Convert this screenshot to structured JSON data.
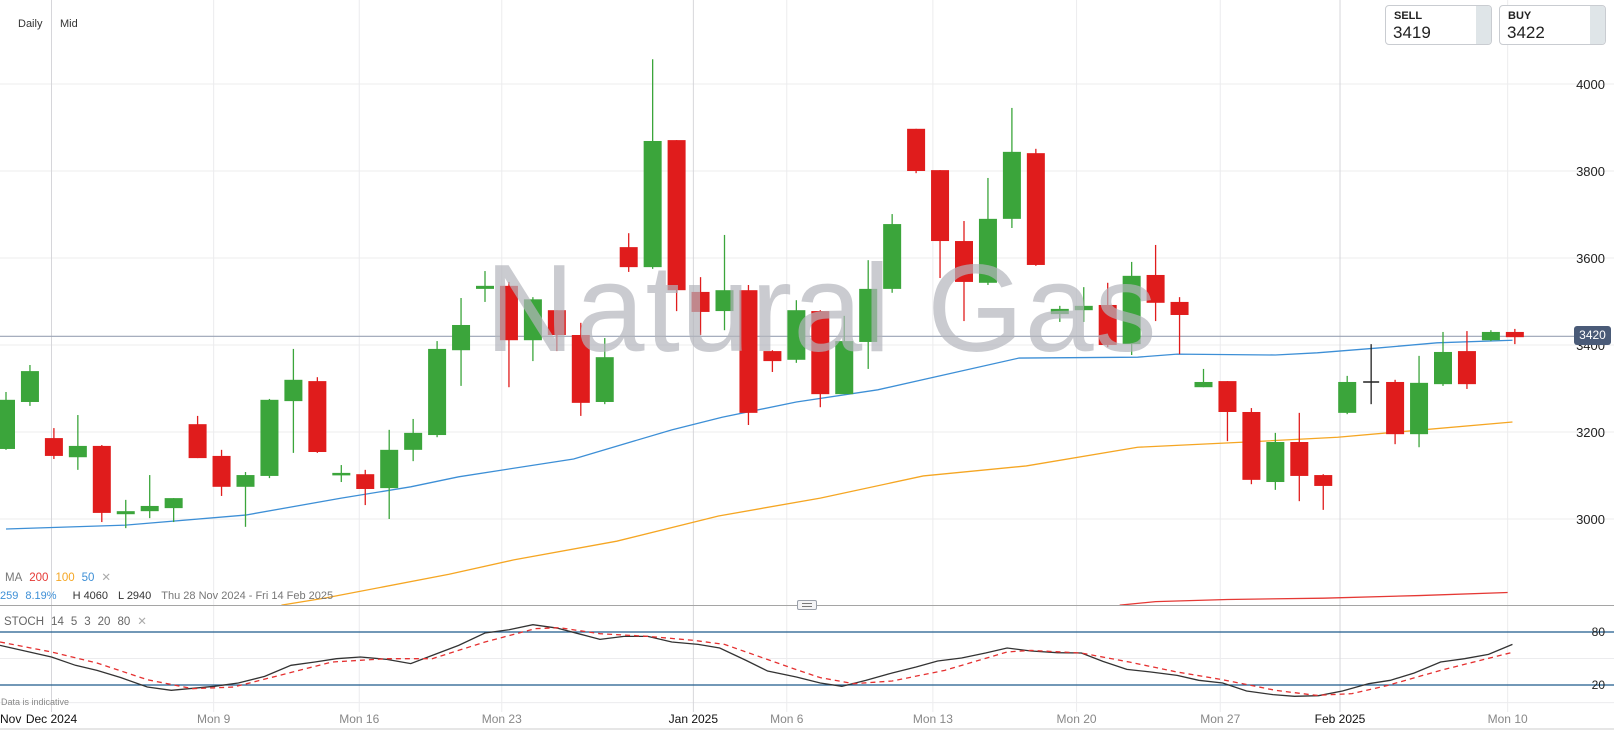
{
  "header": {
    "interval": "Daily",
    "price_type": "Mid"
  },
  "quotes": {
    "sell": {
      "label": "SELL",
      "value": "3419"
    },
    "buy": {
      "label": "BUY",
      "value": "3422"
    }
  },
  "watermark": "Natural Gas",
  "current_price": {
    "value": 3420,
    "label": "3420",
    "color": "#4a5b78"
  },
  "ma_legend": {
    "label": "MA",
    "periods": [
      "200",
      "100",
      "50"
    ],
    "colors": [
      "#e53935",
      "#f5a623",
      "#3d8fd6"
    ],
    "close_icon": "close-icon"
  },
  "info_line": {
    "change": "259",
    "change_pct": "8.19%",
    "high": "H 4060",
    "low": "L 2940",
    "range": "Thu 28 Nov 2024 - Fri 14 Feb 2025"
  },
  "stoch_legend": {
    "label": "STOCH",
    "params": [
      "14",
      "5",
      "3",
      "20",
      "80"
    ],
    "close_icon": "close-icon"
  },
  "disclaimer": "Data is indicative",
  "colors": {
    "up": "#3ba53b",
    "down": "#e01c1c",
    "doji": "#222222",
    "stoch_k": "#333333",
    "stoch_d": "#e53030",
    "stoch_bands": "#1f5b8c"
  },
  "chart_data": [
    {
      "type": "candlestick",
      "title": "",
      "ylim": [
        2800,
        4100
      ],
      "y_ticks": [
        "4000",
        "3800",
        "3600",
        "3400",
        "3200",
        "3000"
      ],
      "x_ticks": [
        {
          "label": "Nov",
          "index": -1.6,
          "month": true
        },
        {
          "label": "Dec 2024",
          "index": 1.9,
          "month": true
        },
        {
          "label": "Mon 9",
          "index": 8.67
        },
        {
          "label": "Mon 16",
          "index": 14.75
        },
        {
          "label": "Mon 23",
          "index": 20.7
        },
        {
          "label": "Jan 2025",
          "index": 28.7,
          "month": true
        },
        {
          "label": "Mon 6",
          "index": 32.6
        },
        {
          "label": "Mon 13",
          "index": 38.7
        },
        {
          "label": "Mon 20",
          "index": 44.7
        },
        {
          "label": "Mon 27",
          "index": 50.7
        },
        {
          "label": "Feb 2025",
          "index": 55.7,
          "month": true
        },
        {
          "label": "Mon 10",
          "index": 62.7
        }
      ],
      "ohlc_fields": [
        "open",
        "high",
        "low",
        "close"
      ],
      "candles": [
        [
          3161,
          3292,
          3159,
          3274
        ],
        [
          3269,
          3354,
          3260,
          3340
        ],
        [
          3186,
          3209,
          3138,
          3145
        ],
        [
          3142,
          3239,
          3113,
          3168
        ],
        [
          3168,
          3170,
          2993,
          3014
        ],
        [
          3011,
          3044,
          2979,
          3018
        ],
        [
          3018,
          3101,
          3002,
          3030
        ],
        [
          3025,
          3048,
          2993,
          3048
        ],
        [
          3218,
          3237,
          3140,
          3140
        ],
        [
          3145,
          3159,
          3053,
          3074
        ],
        [
          3074,
          3108,
          2982,
          3101
        ],
        [
          3099,
          3276,
          3094,
          3274
        ],
        [
          3271,
          3391,
          3152,
          3320
        ],
        [
          3317,
          3326,
          3152,
          3154
        ],
        [
          3101,
          3124,
          3085,
          3106
        ],
        [
          3103,
          3113,
          3032,
          3069
        ],
        [
          3071,
          3205,
          3000,
          3159
        ],
        [
          3159,
          3230,
          3133,
          3198
        ],
        [
          3193,
          3409,
          3188,
          3391
        ],
        [
          3388,
          3508,
          3306,
          3446
        ],
        [
          3529,
          3570,
          3499,
          3536
        ],
        [
          3536,
          3545,
          3303,
          3411
        ],
        [
          3411,
          3510,
          3363,
          3505
        ],
        [
          3480,
          3480,
          3386,
          3423
        ],
        [
          3423,
          3451,
          3237,
          3267
        ],
        [
          3269,
          3416,
          3264,
          3372
        ],
        [
          3625,
          3657,
          3568,
          3579
        ],
        [
          3579,
          4057,
          3575,
          3869
        ],
        [
          3871,
          3871,
          3478,
          3526
        ],
        [
          3522,
          3556,
          3423,
          3476
        ],
        [
          3478,
          3653,
          3434,
          3526
        ],
        [
          3526,
          3538,
          3216,
          3244
        ],
        [
          3386,
          3388,
          3338,
          3363
        ],
        [
          3366,
          3503,
          3359,
          3480
        ],
        [
          3478,
          3480,
          3257,
          3287
        ],
        [
          3287,
          3467,
          3287,
          3409
        ],
        [
          3407,
          3595,
          3345,
          3529
        ],
        [
          3529,
          3701,
          3520,
          3678
        ],
        [
          3897,
          3897,
          3795,
          3800
        ],
        [
          3802,
          3802,
          3554,
          3639
        ],
        [
          3639,
          3685,
          3455,
          3545
        ],
        [
          3543,
          3784,
          3538,
          3690
        ],
        [
          3690,
          3945,
          3669,
          3844
        ],
        [
          3841,
          3851,
          3582,
          3584
        ],
        [
          3471,
          3490,
          3453,
          3483
        ],
        [
          3480,
          3533,
          3453,
          3490
        ],
        [
          3492,
          3543,
          3395,
          3400
        ],
        [
          3402,
          3591,
          3377,
          3559
        ],
        [
          3561,
          3630,
          3455,
          3497
        ],
        [
          3499,
          3510,
          3379,
          3469
        ],
        [
          3303,
          3345,
          3303,
          3315
        ],
        [
          3317,
          3317,
          3179,
          3246
        ],
        [
          3246,
          3255,
          3080,
          3090
        ],
        [
          3085,
          3198,
          3067,
          3177
        ],
        [
          3177,
          3244,
          3041,
          3099
        ],
        [
          3101,
          3103,
          3021,
          3076
        ],
        [
          3244,
          3329,
          3241,
          3315
        ],
        [
          3315,
          3402,
          3264,
          3315
        ],
        [
          3315,
          3320,
          3172,
          3195
        ],
        [
          3195,
          3375,
          3165,
          3313
        ],
        [
          3310,
          3430,
          3306,
          3384
        ],
        [
          3386,
          3432,
          3299,
          3310
        ],
        [
          3411,
          3434,
          3409,
          3430
        ],
        [
          3430,
          3437,
          3402,
          3418
        ]
      ],
      "moving_averages": [
        {
          "name": "50",
          "color": "#3d8fd6",
          "points": [
            [
              0,
              2977
            ],
            [
              5,
              2986
            ],
            [
              10,
              3009
            ],
            [
              14,
              3048
            ],
            [
              16.9,
              3074
            ],
            [
              18.9,
              3097
            ],
            [
              23.7,
              3138
            ],
            [
              27.8,
              3205
            ],
            [
              29.9,
              3234
            ],
            [
              33,
              3269
            ],
            [
              36.4,
              3297
            ],
            [
              42.3,
              3370
            ],
            [
              47.25,
              3372
            ],
            [
              48.9,
              3379
            ],
            [
              53,
              3377
            ],
            [
              54.75,
              3382
            ],
            [
              57.25,
              3393
            ],
            [
              59.75,
              3405
            ],
            [
              62.9,
              3411
            ]
          ]
        },
        {
          "name": "100",
          "color": "#f5a623",
          "points": [
            [
              11.5,
              2802
            ],
            [
              13.3,
              2818
            ],
            [
              18.5,
              2873
            ],
            [
              21.2,
              2906
            ],
            [
              25.5,
              2949
            ],
            [
              29.75,
              3007
            ],
            [
              34,
              3048
            ],
            [
              38.3,
              3099
            ],
            [
              42.6,
              3122
            ],
            [
              47.25,
              3165
            ],
            [
              51.8,
              3177
            ],
            [
              55.6,
              3188
            ],
            [
              62.9,
              3223
            ]
          ]
        },
        {
          "name": "200",
          "color": "#e53935",
          "points": [
            [
              46.5,
              2802
            ],
            [
              48,
              2810
            ],
            [
              51,
              2815
            ],
            [
              55,
              2818
            ],
            [
              59,
              2824
            ],
            [
              62.7,
              2831
            ]
          ]
        }
      ]
    },
    {
      "type": "line",
      "title": "",
      "ylim": [
        0,
        100
      ],
      "y_ticks": [
        "80",
        "20"
      ],
      "bands": [
        80,
        20
      ],
      "series": [
        {
          "name": "K",
          "style": "solid",
          "points": [
            [
              -0.25,
              64.9
            ],
            [
              1.9,
              51.7
            ],
            [
              2.9,
              42.3
            ],
            [
              3.8,
              36.6
            ],
            [
              4.8,
              28.3
            ],
            [
              5.9,
              17.7
            ],
            [
              6.9,
              14
            ],
            [
              8.7,
              18.5
            ],
            [
              9.7,
              22.3
            ],
            [
              10.8,
              29.8
            ],
            [
              11.9,
              42.3
            ],
            [
              12.9,
              46
            ],
            [
              13.8,
              49.8
            ],
            [
              14.8,
              51.7
            ],
            [
              15.9,
              49
            ],
            [
              16.9,
              44.2
            ],
            [
              17.8,
              53.6
            ],
            [
              18.9,
              64.9
            ],
            [
              20,
              78.9
            ],
            [
              21,
              82.6
            ],
            [
              22,
              88.3
            ],
            [
              23,
              84.5
            ],
            [
              24,
              77.4
            ],
            [
              24.8,
              71.7
            ],
            [
              25.8,
              75.1
            ],
            [
              26.8,
              75.1
            ],
            [
              27.8,
              68.7
            ],
            [
              28.9,
              66
            ],
            [
              29.8,
              61.9
            ],
            [
              30.9,
              47.9
            ],
            [
              31.8,
              35.8
            ],
            [
              33,
              29.1
            ],
            [
              34,
              22.3
            ],
            [
              34.9,
              18.5
            ],
            [
              35.9,
              25.3
            ],
            [
              37,
              33.6
            ],
            [
              38,
              40.4
            ],
            [
              38.9,
              47.2
            ],
            [
              39.9,
              50.6
            ],
            [
              40.9,
              56.2
            ],
            [
              41.8,
              61.9
            ],
            [
              42.8,
              58.5
            ],
            [
              43.9,
              56.6
            ],
            [
              44.9,
              56.2
            ],
            [
              45.8,
              46.8
            ],
            [
              46.8,
              37.7
            ],
            [
              47.8,
              34.7
            ],
            [
              48.9,
              30.9
            ],
            [
              49.8,
              25.3
            ],
            [
              50.8,
              22.3
            ],
            [
              51.8,
              13.2
            ],
            [
              52.9,
              9.1
            ],
            [
              53.8,
              7.2
            ],
            [
              54.8,
              7.9
            ],
            [
              55.8,
              13.2
            ],
            [
              56.9,
              21.5
            ],
            [
              57.8,
              25.3
            ],
            [
              58.8,
              33.6
            ],
            [
              59.9,
              46
            ],
            [
              60.9,
              49.8
            ],
            [
              61.9,
              54.7
            ],
            [
              62.9,
              66
            ]
          ]
        },
        {
          "name": "D",
          "style": "dashed",
          "points": [
            [
              -0.25,
              68.7
            ],
            [
              1.9,
              57.4
            ],
            [
              3.8,
              44.9
            ],
            [
              5.9,
              26
            ],
            [
              7.8,
              15.8
            ],
            [
              9.5,
              17.7
            ],
            [
              11.7,
              32.8
            ],
            [
              13.6,
              46
            ],
            [
              15.9,
              49.8
            ],
            [
              17.8,
              49.8
            ],
            [
              20,
              68.7
            ],
            [
              22.1,
              83.8
            ],
            [
              23.1,
              84.9
            ],
            [
              24.8,
              78.1
            ],
            [
              26.8,
              75.1
            ],
            [
              28.7,
              70.6
            ],
            [
              30,
              66
            ],
            [
              33,
              37.4
            ],
            [
              34,
              28.3
            ],
            [
              35.4,
              21.5
            ],
            [
              37,
              24.5
            ],
            [
              39.2,
              36.6
            ],
            [
              41.8,
              57.4
            ],
            [
              42.8,
              59.2
            ],
            [
              44.9,
              56.2
            ],
            [
              46.9,
              46
            ],
            [
              48.9,
              34.7
            ],
            [
              50.8,
              26
            ],
            [
              53,
              14
            ],
            [
              54.7,
              8.3
            ],
            [
              56.2,
              10.2
            ],
            [
              57.7,
              19.6
            ],
            [
              59.9,
              36.6
            ],
            [
              62.9,
              57
            ]
          ]
        }
      ]
    }
  ]
}
